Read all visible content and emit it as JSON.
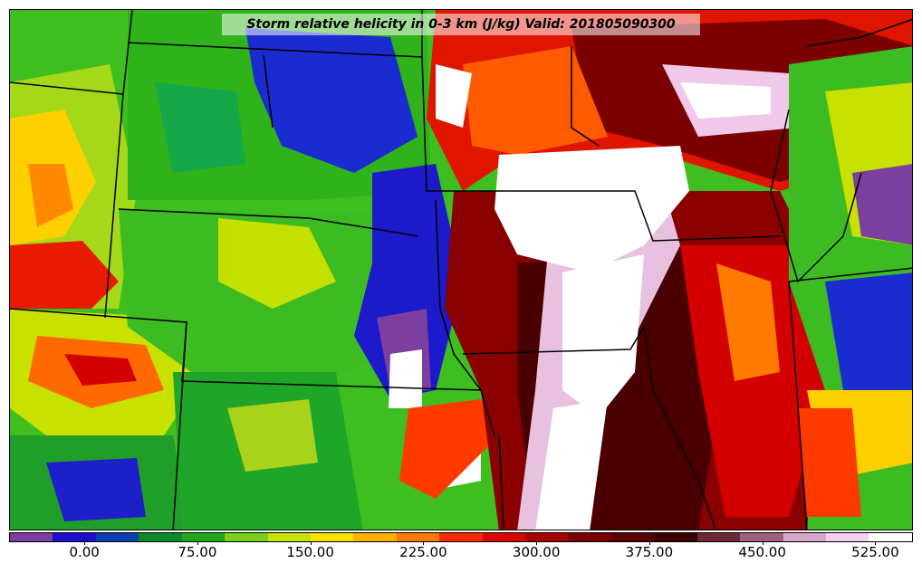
{
  "title": "Storm relative helicity in 0-3 km (J/kg) Valid: 201805090300",
  "colorbar": {
    "tick_labels": [
      "0.00",
      "75.00",
      "150.00",
      "225.00",
      "300.00",
      "375.00",
      "450.00",
      "525.00"
    ],
    "tick_values": [
      0,
      75,
      150,
      225,
      300,
      375,
      450,
      525
    ],
    "range": [
      -50,
      550
    ],
    "colors": [
      "#7b3f9f",
      "#1a0fd0",
      "#0a3fb0",
      "#0b8a2a",
      "#1fa61a",
      "#7ad017",
      "#c6e400",
      "#ffe000",
      "#ffb000",
      "#ff7a00",
      "#ff2a00",
      "#dd0000",
      "#a80000",
      "#7a0000",
      "#5a0000",
      "#3c0000",
      "#6e2a3a",
      "#a05f7a",
      "#d7a6c9",
      "#f5d0f0",
      "#ffffff"
    ]
  }
}
